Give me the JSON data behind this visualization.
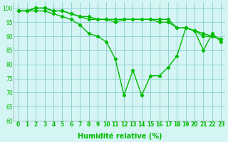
{
  "xlabel": "Humidité relative (%)",
  "x": [
    0,
    1,
    2,
    3,
    4,
    5,
    6,
    7,
    8,
    9,
    10,
    11,
    12,
    13,
    14,
    15,
    16,
    17,
    18,
    19,
    20,
    21,
    22,
    23
  ],
  "line1": [
    99,
    99,
    100,
    100,
    99,
    99,
    98,
    97,
    97,
    96,
    96,
    96,
    96,
    96,
    96,
    96,
    96,
    96,
    93,
    93,
    92,
    91,
    90,
    89
  ],
  "line2": [
    99,
    99,
    100,
    100,
    99,
    99,
    98,
    97,
    96,
    96,
    96,
    95,
    96,
    96,
    96,
    96,
    95,
    95,
    93,
    93,
    92,
    90,
    90,
    89
  ],
  "line3": [
    99,
    99,
    99,
    99,
    98,
    97,
    96,
    94,
    91,
    90,
    88,
    82,
    69,
    78,
    69,
    76,
    76,
    79,
    83,
    93,
    92,
    85,
    91,
    88
  ],
  "line_color": "#00bb00",
  "bg_color": "#d5f5f5",
  "grid_color": "#88cccc",
  "ylim": [
    60,
    102
  ],
  "xlim": [
    -0.5,
    23.5
  ],
  "yticks": [
    60,
    65,
    70,
    75,
    80,
    85,
    90,
    95,
    100
  ],
  "xticks": [
    0,
    1,
    2,
    3,
    4,
    5,
    6,
    7,
    8,
    9,
    10,
    11,
    12,
    13,
    14,
    15,
    16,
    17,
    18,
    19,
    20,
    21,
    22,
    23
  ],
  "tick_fontsize": 5.5,
  "label_fontsize": 7.0
}
